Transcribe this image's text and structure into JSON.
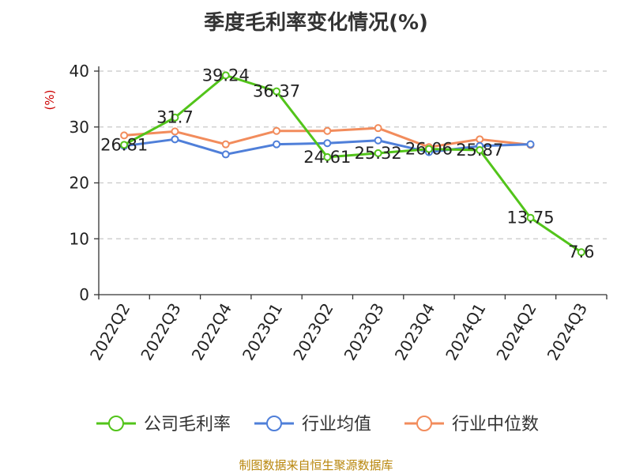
{
  "chart_data": {
    "type": "line",
    "title": "季度毛利率变化情况(%)",
    "ylabel": "(%)",
    "xlabel": "",
    "ylim": [
      0,
      40
    ],
    "yticks": [
      0,
      10,
      20,
      30,
      40
    ],
    "grid": true,
    "legend_position": "bottom",
    "categories": [
      "2022Q2",
      "2022Q3",
      "2022Q4",
      "2023Q1",
      "2023Q2",
      "2023Q3",
      "2023Q4",
      "2024Q1",
      "2024Q2",
      "2024Q3"
    ],
    "series": [
      {
        "name": "公司毛利率",
        "color": "#52c41a",
        "values": [
          26.81,
          31.7,
          39.24,
          36.37,
          24.61,
          25.32,
          26.06,
          25.87,
          13.75,
          7.6
        ],
        "labels": [
          "26.81",
          "31.7",
          "39.24",
          "36.37",
          "24.61",
          "25.32",
          "26.06",
          "25.87",
          "13.75",
          "7.6"
        ]
      },
      {
        "name": "行业均值",
        "color": "#4f7fd9",
        "values": [
          26.6,
          27.8,
          25.1,
          26.9,
          27.1,
          27.6,
          25.5,
          26.6,
          26.9,
          null
        ]
      },
      {
        "name": "行业中位数",
        "color": "#f28c5c",
        "values": [
          28.5,
          29.2,
          26.9,
          29.3,
          29.3,
          29.8,
          26.4,
          27.8,
          26.8,
          null
        ]
      }
    ]
  },
  "footer": {
    "source": "制图数据来自恒生聚源数据库"
  }
}
